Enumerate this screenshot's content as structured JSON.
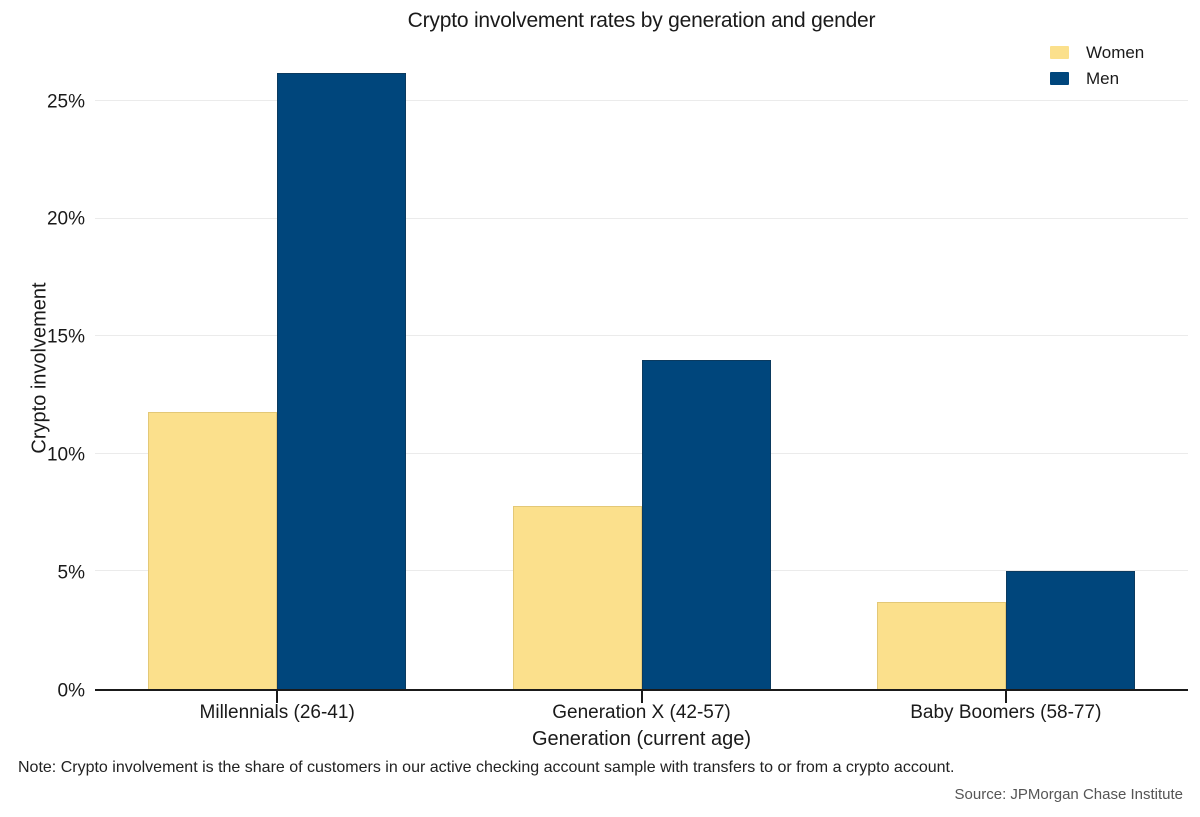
{
  "title": "Crypto involvement rates by generation and gender",
  "legend": {
    "items": [
      {
        "label": "Women",
        "color": "#FBE08C"
      },
      {
        "label": "Men",
        "color": "#00467C"
      }
    ]
  },
  "chart_data": {
    "type": "bar",
    "title": "Crypto involvement rates by generation and gender",
    "categories": [
      "Millennials (26-41)",
      "Generation X (42-57)",
      "Baby Boomers (58-77)"
    ],
    "series": [
      {
        "name": "Women",
        "color": "#FBE08C",
        "border_color": "#e3c877",
        "values": [
          11.8,
          7.8,
          3.7
        ]
      },
      {
        "name": "Men",
        "color": "#00467C",
        "border_color": "#0b3a5f",
        "values": [
          26.2,
          14.0,
          5.0
        ]
      }
    ],
    "xlabel": "Generation (current age)",
    "ylabel": "Crypto involvement",
    "y_ticks": [
      0,
      5,
      10,
      15,
      20,
      25
    ],
    "y_tick_labels": [
      "0%",
      "5%",
      "10%",
      "15%",
      "20%",
      "25%"
    ],
    "ylim": [
      0,
      27.4
    ],
    "grid": "horizontal",
    "legend_position": "top-right",
    "axis_color": "#1a1a1a",
    "gridline_color": "#ebebeb"
  },
  "note": "Note: Crypto involvement is the share of customers in our active checking account sample with transfers to or from a crypto account.",
  "source": "Source: JPMorgan Chase Institute"
}
